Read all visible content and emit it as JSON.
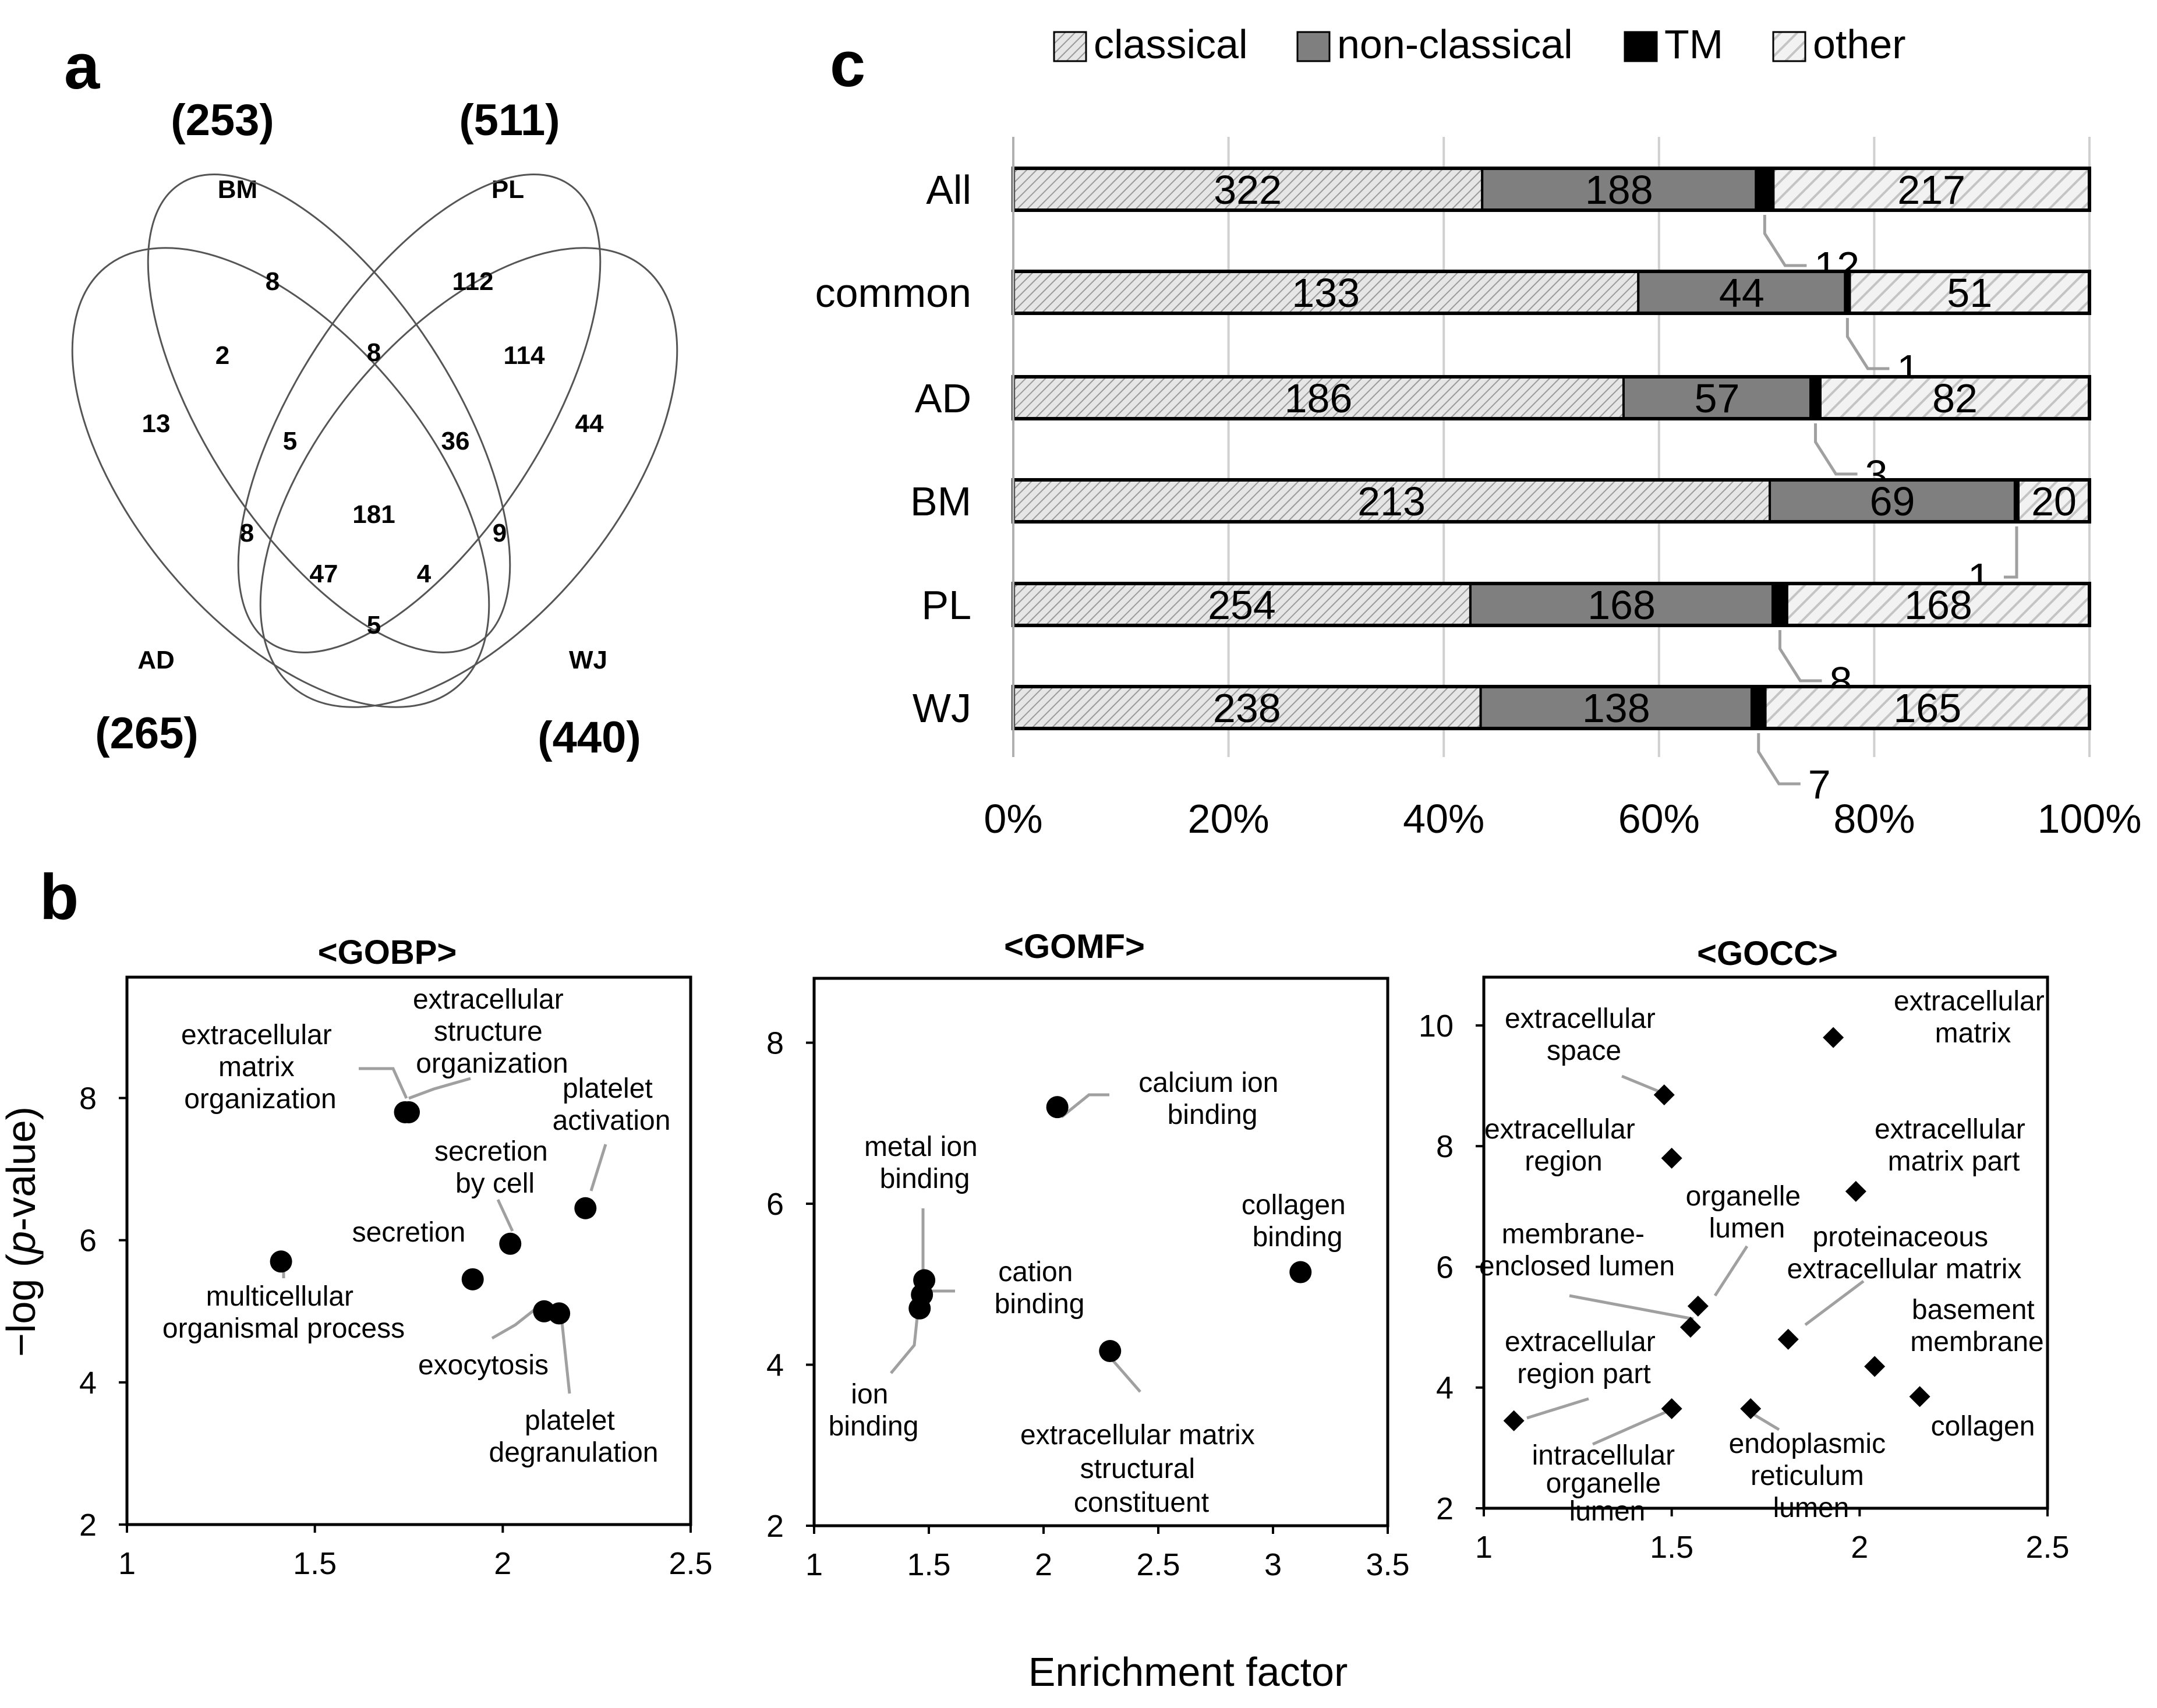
{
  "panels": {
    "a": "a",
    "b": "b",
    "c": "c"
  },
  "colors": {
    "classical": "#c8c8c8",
    "non_classical": "#7f7f7f",
    "tm": "#000000",
    "other": "#d9d9d9",
    "grid": "#d0d0d0",
    "leader": "#a0a0a0",
    "ink": "#000000"
  },
  "venn": {
    "sets": [
      {
        "name": "BM",
        "total": "(253)"
      },
      {
        "name": "PL",
        "total": "(511)"
      },
      {
        "name": "AD",
        "total": "(265)"
      },
      {
        "name": "WJ",
        "total": "(440)"
      }
    ],
    "regions": [
      {
        "sets": [
          "BM"
        ],
        "count": "8"
      },
      {
        "sets": [
          "PL"
        ],
        "count": "112"
      },
      {
        "sets": [
          "AD"
        ],
        "count": "13"
      },
      {
        "sets": [
          "WJ"
        ],
        "count": "44"
      },
      {
        "sets": [
          "AD",
          "BM"
        ],
        "count": "2"
      },
      {
        "sets": [
          "BM",
          "PL"
        ],
        "count": "8"
      },
      {
        "sets": [
          "PL",
          "WJ"
        ],
        "count": "114"
      },
      {
        "sets": [
          "AD",
          "BM",
          "PL"
        ],
        "count": "5"
      },
      {
        "sets": [
          "BM",
          "PL",
          "WJ"
        ],
        "count": "36"
      },
      {
        "sets": [
          "AD",
          "BM",
          "PL",
          "WJ"
        ],
        "count": "181"
      },
      {
        "sets": [
          "AD",
          "PL"
        ],
        "count": "8"
      },
      {
        "sets": [
          "BM",
          "WJ"
        ],
        "count": "9"
      },
      {
        "sets": [
          "AD",
          "PL",
          "WJ"
        ],
        "count": "47"
      },
      {
        "sets": [
          "AD",
          "BM",
          "WJ"
        ],
        "count": "4"
      },
      {
        "sets": [
          "AD",
          "WJ"
        ],
        "count": "5"
      }
    ]
  },
  "chart_data": [
    {
      "id": "c",
      "type": "bar",
      "stacked": "100%",
      "orientation": "horizontal",
      "categories": [
        "All",
        "common",
        "AD",
        "BM",
        "PL",
        "WJ"
      ],
      "series": [
        {
          "name": "classical",
          "values": [
            322,
            133,
            186,
            213,
            254,
            238
          ]
        },
        {
          "name": "non-classical",
          "values": [
            188,
            44,
            57,
            69,
            168,
            138
          ]
        },
        {
          "name": "TM",
          "values": [
            12,
            1,
            3,
            1,
            8,
            7
          ]
        },
        {
          "name": "other",
          "values": [
            217,
            51,
            82,
            20,
            168,
            165
          ]
        }
      ],
      "xlim": [
        0,
        100
      ],
      "xticks": [
        "0%",
        "20%",
        "40%",
        "60%",
        "80%",
        "100%"
      ],
      "grid": "vertical",
      "legend": "top"
    },
    {
      "id": "b-gobp",
      "type": "scatter",
      "title": "<GOBP>",
      "xlim": [
        1,
        2.5
      ],
      "ylim": [
        2,
        9.7
      ],
      "xticks": [
        "1",
        "1.5",
        "2",
        "2.5"
      ],
      "yticks": [
        "2",
        "4",
        "6",
        "8"
      ],
      "points": [
        {
          "label": "extracellular matrix organization",
          "x": 1.74,
          "y": 7.8
        },
        {
          "label": "extracellular structure organization",
          "x": 1.75,
          "y": 7.8
        },
        {
          "label": "platelet activation",
          "x": 2.22,
          "y": 6.45
        },
        {
          "label": "secretion by cell",
          "x": 2.02,
          "y": 5.95
        },
        {
          "label": "secretion",
          "x": 1.92,
          "y": 5.45
        },
        {
          "label": "multicellular organismal process",
          "x": 1.41,
          "y": 5.7
        },
        {
          "label": "exocytosis",
          "x": 2.11,
          "y": 5.0
        },
        {
          "label": "platelet degranulation",
          "x": 2.15,
          "y": 4.97
        }
      ]
    },
    {
      "id": "b-gomf",
      "type": "scatter",
      "title": "<GOMF>",
      "xlim": [
        1,
        3.5
      ],
      "ylim": [
        2,
        8.8
      ],
      "xticks": [
        "1",
        "1.5",
        "2",
        "2.5",
        "3",
        "3.5"
      ],
      "yticks": [
        "2",
        "4",
        "6",
        "8"
      ],
      "points": [
        {
          "label": "calcium ion binding",
          "x": 2.06,
          "y": 7.2
        },
        {
          "label": "collagen binding",
          "x": 3.12,
          "y": 5.15
        },
        {
          "label": "metal ion binding",
          "x": 1.48,
          "y": 5.05
        },
        {
          "label": "cation binding",
          "x": 1.47,
          "y": 4.87
        },
        {
          "label": "ion binding",
          "x": 1.46,
          "y": 4.7
        },
        {
          "label": "extracellular matrix structural constituent",
          "x": 2.29,
          "y": 4.17
        }
      ]
    },
    {
      "id": "b-gocc",
      "type": "scatter",
      "title": "<GOCC>",
      "xlim": [
        1,
        2.5
      ],
      "ylim": [
        2,
        10.8
      ],
      "xticks": [
        "1",
        "1.5",
        "2",
        "2.5"
      ],
      "yticks": [
        "2",
        "4",
        "6",
        "8",
        "10"
      ],
      "points": [
        {
          "label": "extracellular matrix",
          "x": 1.93,
          "y": 9.8
        },
        {
          "label": "extracellular space",
          "x": 1.48,
          "y": 8.85
        },
        {
          "label": "extracellular region",
          "x": 1.5,
          "y": 7.8
        },
        {
          "label": "extracellular matrix part",
          "x": 1.99,
          "y": 7.25
        },
        {
          "label": "organelle lumen",
          "x": 1.57,
          "y": 5.35
        },
        {
          "label": "membrane-enclosed lumen",
          "x": 1.55,
          "y": 5.0
        },
        {
          "label": "proteinaceous extracellular matrix",
          "x": 1.81,
          "y": 4.8
        },
        {
          "label": "basement membrane",
          "x": 2.04,
          "y": 4.35
        },
        {
          "label": "collagen",
          "x": 2.16,
          "y": 3.85
        },
        {
          "label": "extracellular region part",
          "x": 1.08,
          "y": 3.45
        },
        {
          "label": "intracellular organelle lumen",
          "x": 1.5,
          "y": 3.65
        },
        {
          "label": "endoplasmic reticulum lumen",
          "x": 1.71,
          "y": 3.65
        }
      ]
    }
  ],
  "c_panel": {
    "legend": [
      "classical",
      "non-classical",
      "TM",
      "other"
    ],
    "bar_labels": [
      {
        "classical": "322",
        "non_classical": "188",
        "tm": "12",
        "other": "217"
      },
      {
        "classical": "133",
        "non_classical": "44",
        "tm": "1",
        "other": "51"
      },
      {
        "classical": "186",
        "non_classical": "57",
        "tm": "3",
        "other": "82"
      },
      {
        "classical": "213",
        "non_classical": "69",
        "tm": "1",
        "other": "20"
      },
      {
        "classical": "254",
        "non_classical": "168",
        "tm": "8",
        "other": "168"
      },
      {
        "classical": "238",
        "non_classical": "138",
        "tm": "7",
        "other": "165"
      }
    ]
  },
  "b_panel": {
    "ylabel": "−log (p-value)",
    "xlabel": "Enrichment factor",
    "gobp_labels": {
      "ecm_org": [
        "extracellular",
        "matrix",
        "organization"
      ],
      "ecs_org": [
        "extracellular",
        "structure",
        "organization"
      ],
      "platelet_act": [
        "platelet",
        "activation"
      ],
      "secretion_cell": [
        "secretion",
        "by cell"
      ],
      "secretion": [
        "secretion"
      ],
      "multicellular": [
        "multicellular",
        "organismal process"
      ],
      "exocytosis": [
        "exocytosis"
      ],
      "platelet_degran": [
        "platelet",
        "degranulation"
      ]
    },
    "gomf_labels": {
      "calcium": [
        "calcium ion",
        "binding"
      ],
      "collagen": [
        "collagen",
        "binding"
      ],
      "metal": [
        "metal ion",
        "binding"
      ],
      "cation": [
        "cation",
        "binding"
      ],
      "ion": [
        "ion",
        "binding"
      ],
      "ecm_struct": [
        "extracellular matrix",
        "structural",
        "constituent"
      ]
    },
    "gocc_labels": {
      "ecm": [
        "extracellular",
        "matrix"
      ],
      "ecs": [
        "extracellular",
        "space"
      ],
      "ecr": [
        "extracellular",
        "region"
      ],
      "ecm_part": [
        "extracellular",
        "matrix part"
      ],
      "organelle": [
        "organelle",
        "lumen"
      ],
      "membrane": [
        "membrane-",
        "enclosed lumen"
      ],
      "proteinaceous": [
        "proteinaceous",
        "extracellular matrix"
      ],
      "basement": [
        "basement",
        "membrane"
      ],
      "collagen": [
        "collagen"
      ],
      "ecr_part": [
        "extracellular",
        "region part"
      ],
      "intracellular": [
        "intracellular",
        "organelle",
        "lumen"
      ],
      "er": [
        "endoplasmic",
        "reticulum",
        "lumen"
      ]
    }
  }
}
